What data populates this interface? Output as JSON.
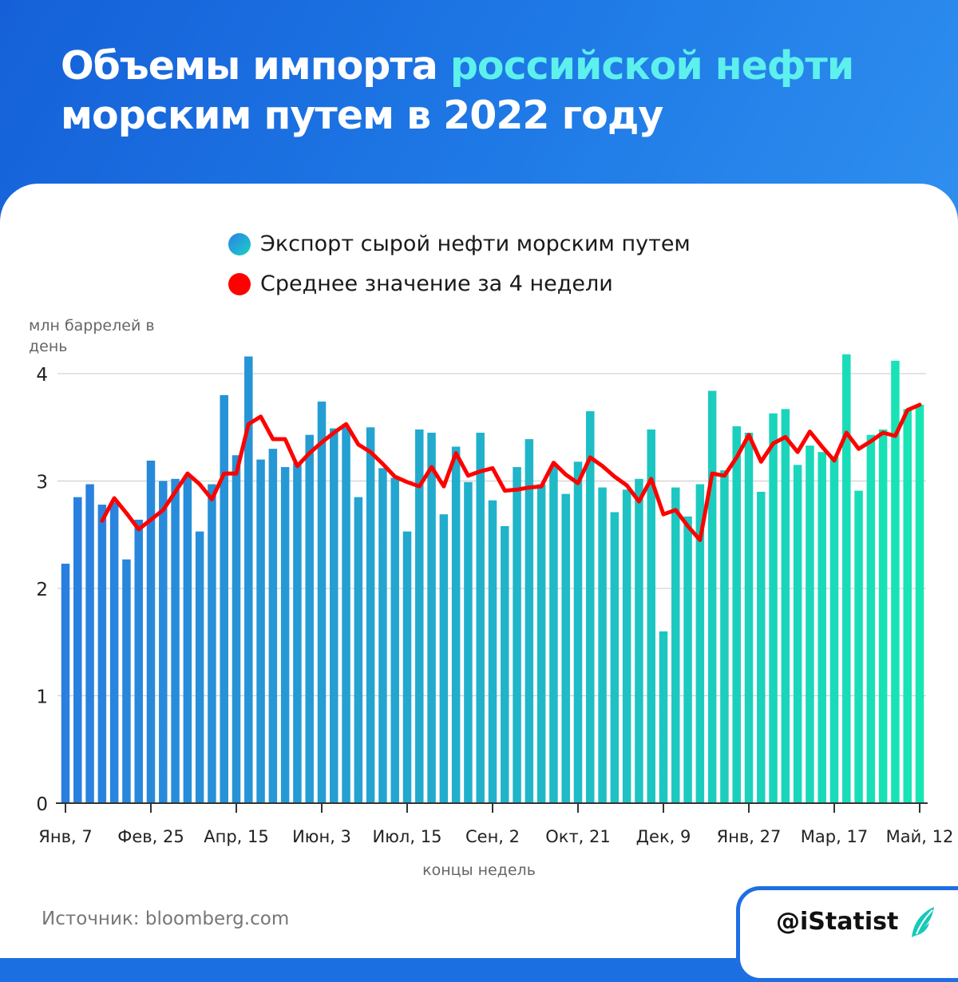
{
  "header": {
    "title_part1": "Объемы импорта ",
    "title_highlight": "российской нефти",
    "title_part2": "морским путем в 2022 году"
  },
  "legend": {
    "items": [
      {
        "label": "Экспорт сырой нефти морским путем",
        "color": "#2f7fe6"
      },
      {
        "label": "Среднее значение за 4 недели",
        "color": "#ff0000"
      }
    ]
  },
  "colors": {
    "header_blue": "#1c6fe0",
    "highlight_cyan": "#5ef0ec",
    "bar_start": "#2a7ee0",
    "bar_end": "#17e6b4",
    "line_red": "#ff0000"
  },
  "chart_data": {
    "type": "bar",
    "ylabel": "млн баррелей в день",
    "xlabel": "концы недель",
    "ylim": [
      0,
      4.3
    ],
    "yticks": [
      "0",
      "1",
      "2",
      "3",
      "4"
    ],
    "xtick_labels": [
      "Янв, 7",
      "Фев, 25",
      "Апр, 15",
      "Июн, 3",
      "Июл, 15",
      "Сен, 2",
      "Окт, 21",
      "Дек, 9",
      "Янв, 27",
      "Мар, 17",
      "Май, 12"
    ],
    "grid": "horizontal",
    "series": [
      {
        "name": "Экспорт сырой нефти морским путем",
        "type": "bar",
        "values": [
          2.23,
          2.85,
          2.97,
          2.78,
          2.8,
          2.27,
          2.64,
          3.19,
          3.0,
          3.02,
          3.05,
          2.53,
          2.97,
          3.8,
          3.24,
          4.16,
          3.2,
          3.3,
          3.13,
          3.17,
          3.43,
          3.74,
          3.49,
          3.5,
          2.85,
          3.5,
          3.12,
          3.03,
          2.53,
          3.48,
          3.45,
          2.69,
          3.32,
          2.99,
          3.45,
          2.82,
          2.58,
          3.13,
          3.39,
          2.97,
          3.14,
          2.88,
          3.18,
          3.65,
          2.94,
          2.71,
          2.92,
          3.02,
          3.48,
          1.6,
          2.94,
          2.67,
          2.97,
          3.84,
          3.1,
          3.51,
          3.45,
          2.9,
          3.63,
          3.67,
          3.15,
          3.33,
          3.27,
          3.23,
          4.18,
          2.91,
          3.43,
          3.48,
          4.12,
          3.67,
          3.71
        ]
      },
      {
        "name": "Среднее значение за 4 недели",
        "type": "line",
        "start_index": 3,
        "values": [
          2.63,
          2.84,
          2.7,
          2.55,
          2.64,
          2.73,
          2.9,
          3.07,
          2.97,
          2.83,
          3.07,
          3.07,
          3.53,
          3.6,
          3.39,
          3.39,
          3.14,
          3.26,
          3.36,
          3.45,
          3.53,
          3.34,
          3.27,
          3.16,
          3.04,
          2.99,
          2.95,
          3.13,
          2.95,
          3.26,
          3.05,
          3.09,
          3.12,
          2.91,
          2.92,
          2.94,
          2.95,
          3.17,
          3.06,
          2.98,
          3.22,
          3.14,
          3.04,
          2.96,
          2.81,
          3.02,
          2.69,
          2.73,
          2.58,
          2.45,
          3.07,
          3.05,
          3.22,
          3.43,
          3.18,
          3.35,
          3.41,
          3.27,
          3.46,
          3.32,
          3.19,
          3.45,
          3.3,
          3.37,
          3.45,
          3.42,
          3.66,
          3.71
        ]
      }
    ]
  },
  "source": "Источник: bloomberg.com",
  "brand": {
    "text": "@iStatist",
    "logo_icon": "leaf-logo"
  }
}
